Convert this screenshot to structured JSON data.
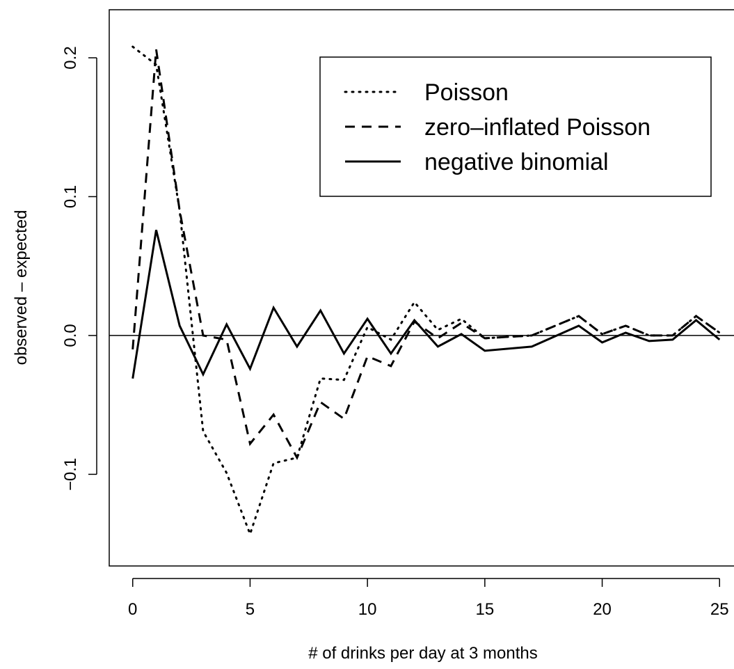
{
  "chart_data": {
    "type": "line",
    "x_label": "# of drinks per day at 3 months",
    "y_label": "observed – expected",
    "x": [
      0,
      1,
      2,
      3,
      4,
      5,
      6,
      7,
      8,
      9,
      10,
      11,
      12,
      13,
      14,
      15,
      17,
      19,
      20,
      21,
      22,
      23,
      24,
      25
    ],
    "series": [
      {
        "name": "Poisson",
        "color": "#000000",
        "dash": "dotted",
        "values": [
          0.208,
          0.195,
          0.09,
          -0.069,
          -0.099,
          -0.143,
          -0.092,
          -0.088,
          -0.031,
          -0.032,
          0.006,
          -0.003,
          0.024,
          0.004,
          0.012,
          -0.002,
          0,
          0.014,
          0.001,
          0.007,
          0,
          0,
          0.014,
          0.002
        ]
      },
      {
        "name": "zero–inflated Poisson",
        "color": "#000000",
        "dash": "dashed",
        "values": [
          -0.01,
          0.206,
          0.09,
          0.0,
          -0.003,
          -0.078,
          -0.057,
          -0.088,
          -0.048,
          -0.06,
          -0.015,
          -0.022,
          0.01,
          -0.002,
          0.009,
          -0.002,
          0,
          0.014,
          0.001,
          0.007,
          0,
          0,
          0.014,
          0.002
        ]
      },
      {
        "name": "negative binomial",
        "color": "#000000",
        "dash": "solid",
        "values": [
          -0.031,
          0.076,
          0.007,
          -0.028,
          0.008,
          -0.024,
          0.02,
          -0.008,
          0.018,
          -0.013,
          0.012,
          -0.013,
          0.011,
          -0.008,
          0.001,
          -0.011,
          -0.008,
          0.007,
          -0.005,
          0.002,
          -0.004,
          -0.003,
          0.011,
          -0.003
        ]
      }
    ],
    "xlim": [
      -1,
      26
    ],
    "ylim": [
      -0.166,
      0.2346
    ],
    "xticks": [
      0,
      5,
      10,
      15,
      20,
      25
    ],
    "yticks": [
      {
        "value": -0.1,
        "label": "−0.1"
      },
      {
        "value": 0,
        "label": "0.0"
      },
      0.1,
      0.2
    ],
    "hline": 0,
    "legend": "topright"
  }
}
